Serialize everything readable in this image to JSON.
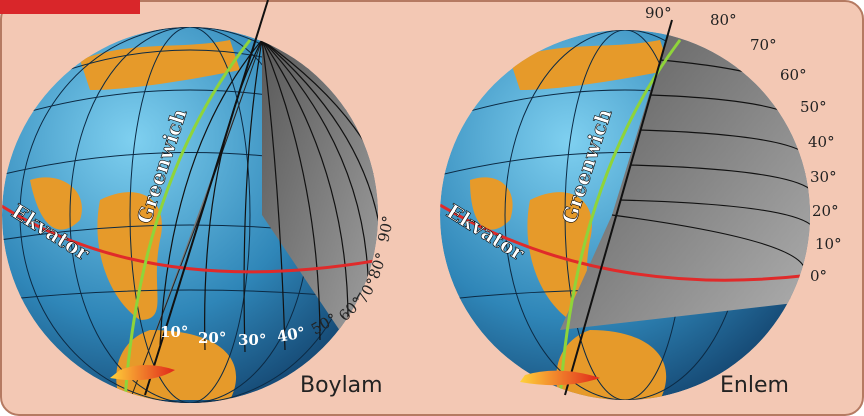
{
  "panels": [
    {
      "caption": "Boylam",
      "meridian": "Greenwich",
      "equator": "Ekvator",
      "labels": [
        "10°",
        "20°",
        "30°",
        "40°",
        "50°",
        "60°",
        "70°",
        "80°",
        "90°"
      ]
    },
    {
      "caption": "Enlem",
      "meridian": "Greenwich",
      "equator": "Ekvator",
      "labels": [
        "90°",
        "80°",
        "70°",
        "60°",
        "50°",
        "40°",
        "30°",
        "20°",
        "10°",
        "0°"
      ]
    }
  ]
}
